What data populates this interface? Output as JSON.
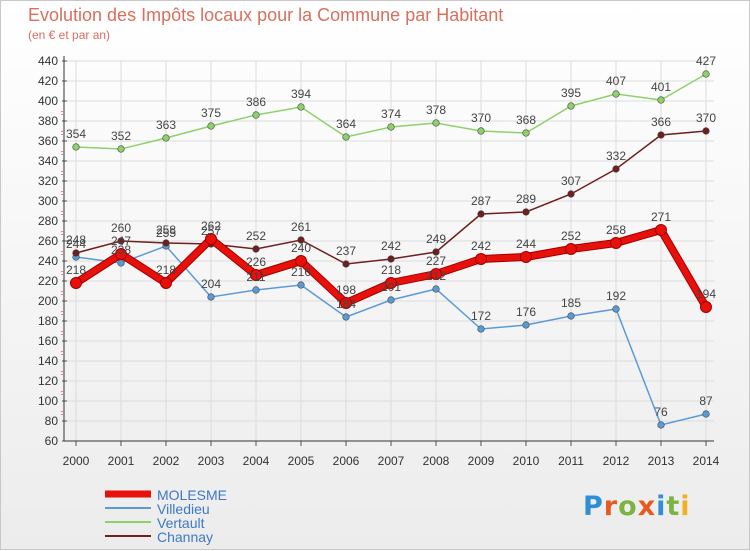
{
  "title": "Evolution des Impôts locaux pour la Commune par Habitant",
  "subtitle": "(en € et par an)",
  "logo": {
    "text": "Proxiti",
    "letters": [
      "P",
      "r",
      "o",
      "x",
      "i",
      "t",
      "i"
    ],
    "colors": [
      "#2e8fd6",
      "#e8591f",
      "#7cb342",
      "#e8591f",
      "#2e8fd6",
      "#7cb342",
      "#f2b01e"
    ]
  },
  "chart_data": {
    "type": "line",
    "title": "Evolution des Impôts locaux pour la Commune par Habitant",
    "subtitle": "(en € et par an)",
    "x": [
      "2000",
      "2001",
      "2002",
      "2003",
      "2004",
      "2005",
      "2006",
      "2007",
      "2008",
      "2009",
      "2010",
      "2011",
      "2012",
      "2013",
      "2014"
    ],
    "y_ticks": [
      "60",
      "80",
      "100",
      "120",
      "140",
      "160",
      "180",
      "200",
      "220",
      "240",
      "260",
      "280",
      "300",
      "320",
      "340",
      "360",
      "380",
      "400",
      "420",
      "440"
    ],
    "ylim": [
      60,
      440
    ],
    "grid": true,
    "legend_position": "bottom-left",
    "series": [
      {
        "name": "Villedieu",
        "color": "#5b9bd5",
        "values": [
          244,
          238,
          255,
          204,
          211,
          216,
          184,
          201,
          212,
          172,
          176,
          185,
          192,
          76,
          87
        ],
        "labels": [
          "244",
          "238",
          "255",
          "204",
          "211",
          "216",
          "184",
          "201",
          "212",
          "172",
          "176",
          "185",
          "192",
          "76",
          "87"
        ]
      },
      {
        "name": "Vertault",
        "color": "#8ed16b",
        "values": [
          354,
          352,
          363,
          375,
          386,
          394,
          364,
          374,
          378,
          370,
          368,
          395,
          407,
          401,
          427
        ],
        "labels": [
          "354",
          "352",
          "363",
          "375",
          "386",
          "394",
          "364",
          "374",
          "378",
          "370",
          "368",
          "395",
          "407",
          "401",
          "427"
        ]
      },
      {
        "name": "Channay",
        "color": "#6e1f1f",
        "values": [
          248,
          260,
          258,
          257,
          252,
          261,
          237,
          242,
          249,
          287,
          289,
          307,
          332,
          366,
          370
        ],
        "labels": [
          "248",
          "260",
          "258",
          "257",
          "252",
          "261",
          "237",
          "242",
          "249",
          "287",
          "289",
          "307",
          "332",
          "366",
          "370"
        ]
      },
      {
        "name": "MOLESME",
        "color": "#e8100a",
        "values": [
          218,
          247,
          218,
          262,
          226,
          240,
          198,
          218,
          227,
          242,
          244,
          252,
          258,
          271,
          194
        ],
        "labels": [
          "218",
          "247",
          "218",
          "262",
          "226",
          "240",
          "198",
          "218",
          "227",
          "242",
          "244",
          "252",
          "258",
          "271",
          "194"
        ]
      }
    ],
    "legend": [
      {
        "name": "MOLESME",
        "color": "#e8100a"
      },
      {
        "name": "Villedieu",
        "color": "#5b9bd5"
      },
      {
        "name": "Vertault",
        "color": "#8ed16b"
      },
      {
        "name": "Channay",
        "color": "#6e1f1f"
      }
    ]
  }
}
